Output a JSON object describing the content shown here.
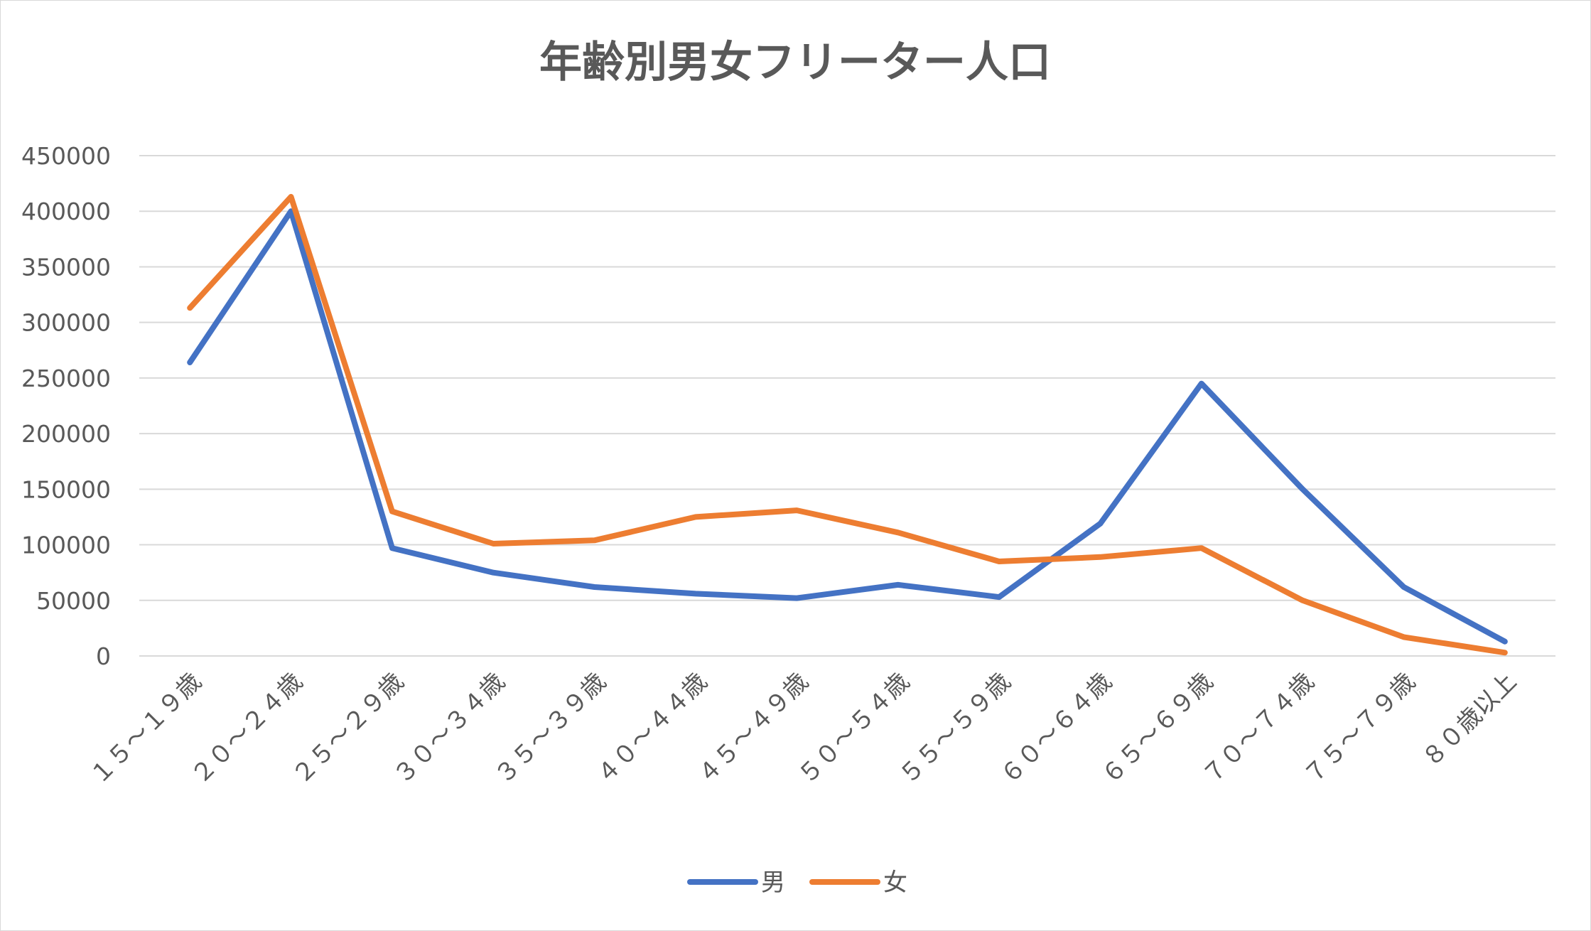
{
  "chart_data": {
    "type": "line",
    "title": "年齢別男女フリーター人口",
    "xlabel": "",
    "ylabel": "",
    "categories": [
      "１５～１９歳",
      "２０～２４歳",
      "２５～２９歳",
      "３０～３４歳",
      "３５～３９歳",
      "４０～４４歳",
      "４５～４９歳",
      "５０～５４歳",
      "５５～５９歳",
      "６０～６４歳",
      "６５～６９歳",
      "７０～７４歳",
      "７５～７９歳",
      "８０歳以上"
    ],
    "ylim": [
      0,
      450000
    ],
    "yticks": [
      "0",
      "50000",
      "100000",
      "150000",
      "200000",
      "250000",
      "300000",
      "350000",
      "400000",
      "450000"
    ],
    "grid": true,
    "legend_position": "bottom",
    "series": [
      {
        "name": "男",
        "color": "#4472C4",
        "values": [
          264000,
          400000,
          97000,
          75000,
          62000,
          56000,
          52000,
          64000,
          53000,
          119000,
          245000,
          150000,
          62000,
          13000
        ]
      },
      {
        "name": "女",
        "color": "#ED7D31",
        "values": [
          313000,
          413000,
          130000,
          101000,
          104000,
          125000,
          131000,
          111000,
          85000,
          89000,
          97000,
          50000,
          17000,
          3000
        ]
      }
    ]
  }
}
